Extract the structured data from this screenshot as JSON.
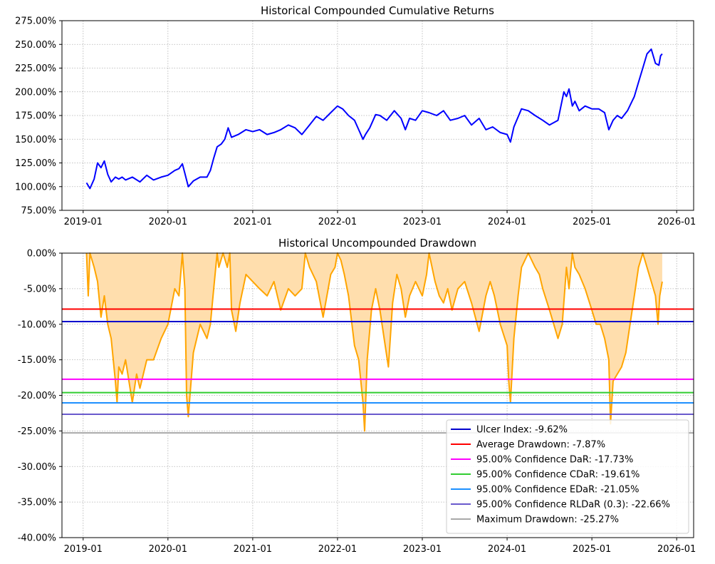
{
  "chart_data": [
    {
      "type": "line",
      "title": "Historical Compounded Cumulative Returns",
      "xlabel": "",
      "ylabel": "",
      "grid": true,
      "ylim": [
        0.75,
        2.75
      ],
      "xlim": [
        2018.75,
        2026.2
      ],
      "x_ticks": [
        2019,
        2020,
        2021,
        2022,
        2023,
        2024,
        2025,
        2026
      ],
      "x_tick_labels": [
        "2019-01",
        "2020-01",
        "2021-01",
        "2022-01",
        "2023-01",
        "2024-01",
        "2025-01",
        "2026-01"
      ],
      "y_ticks": [
        0.75,
        1.0,
        1.25,
        1.5,
        1.75,
        2.0,
        2.25,
        2.5,
        2.75
      ],
      "y_tick_labels": [
        "75.00%",
        "100.00%",
        "125.00%",
        "150.00%",
        "175.00%",
        "200.00%",
        "225.00%",
        "250.00%",
        "275.00%"
      ],
      "series": [
        {
          "name": "Cumulative Returns",
          "color": "#0000ff",
          "x": [
            2019.04,
            2019.08,
            2019.13,
            2019.17,
            2019.21,
            2019.25,
            2019.29,
            2019.33,
            2019.38,
            2019.42,
            2019.46,
            2019.5,
            2019.58,
            2019.67,
            2019.75,
            2019.83,
            2019.92,
            2020.0,
            2020.08,
            2020.13,
            2020.17,
            2020.2,
            2020.24,
            2020.3,
            2020.38,
            2020.46,
            2020.5,
            2020.54,
            2020.58,
            2020.63,
            2020.67,
            2020.71,
            2020.75,
            2020.83,
            2020.92,
            2021.0,
            2021.08,
            2021.17,
            2021.25,
            2021.33,
            2021.42,
            2021.5,
            2021.58,
            2021.67,
            2021.75,
            2021.83,
            2021.92,
            2022.0,
            2022.06,
            2022.13,
            2022.2,
            2022.25,
            2022.3,
            2022.33,
            2022.38,
            2022.45,
            2022.5,
            2022.58,
            2022.67,
            2022.75,
            2022.8,
            2022.85,
            2022.92,
            2023.0,
            2023.08,
            2023.17,
            2023.25,
            2023.33,
            2023.42,
            2023.5,
            2023.58,
            2023.67,
            2023.75,
            2023.83,
            2023.92,
            2024.0,
            2024.04,
            2024.08,
            2024.17,
            2024.25,
            2024.33,
            2024.42,
            2024.5,
            2024.6,
            2024.67,
            2024.7,
            2024.73,
            2024.77,
            2024.8,
            2024.85,
            2024.92,
            2025.0,
            2025.08,
            2025.15,
            2025.2,
            2025.25,
            2025.27,
            2025.3,
            2025.35,
            2025.42,
            2025.5,
            2025.55,
            2025.6,
            2025.65,
            2025.7,
            2025.75,
            2025.79,
            2025.81,
            2025.83
          ],
          "y": [
            1.04,
            0.98,
            1.08,
            1.25,
            1.2,
            1.27,
            1.13,
            1.05,
            1.1,
            1.08,
            1.1,
            1.07,
            1.1,
            1.05,
            1.12,
            1.07,
            1.1,
            1.12,
            1.17,
            1.19,
            1.24,
            1.14,
            1.0,
            1.06,
            1.1,
            1.1,
            1.17,
            1.3,
            1.42,
            1.45,
            1.5,
            1.62,
            1.52,
            1.55,
            1.6,
            1.58,
            1.6,
            1.55,
            1.57,
            1.6,
            1.65,
            1.62,
            1.55,
            1.65,
            1.74,
            1.7,
            1.78,
            1.85,
            1.82,
            1.75,
            1.7,
            1.6,
            1.5,
            1.55,
            1.62,
            1.76,
            1.75,
            1.7,
            1.8,
            1.72,
            1.6,
            1.72,
            1.7,
            1.8,
            1.78,
            1.75,
            1.8,
            1.7,
            1.72,
            1.75,
            1.65,
            1.72,
            1.6,
            1.63,
            1.57,
            1.55,
            1.47,
            1.63,
            1.82,
            1.8,
            1.75,
            1.7,
            1.65,
            1.7,
            2.0,
            1.95,
            2.03,
            1.85,
            1.9,
            1.8,
            1.85,
            1.82,
            1.82,
            1.78,
            1.6,
            1.7,
            1.72,
            1.75,
            1.72,
            1.8,
            1.95,
            2.1,
            2.25,
            2.4,
            2.45,
            2.3,
            2.28,
            2.38,
            2.4
          ]
        }
      ]
    },
    {
      "type": "area",
      "title": "Historical Uncompounded Drawdown",
      "xlabel": "",
      "ylabel": "",
      "grid": true,
      "ylim": [
        -0.4,
        0.0
      ],
      "xlim": [
        2018.75,
        2026.2
      ],
      "x_ticks": [
        2019,
        2020,
        2021,
        2022,
        2023,
        2024,
        2025,
        2026
      ],
      "x_tick_labels": [
        "2019-01",
        "2020-01",
        "2021-01",
        "2022-01",
        "2023-01",
        "2024-01",
        "2025-01",
        "2026-01"
      ],
      "y_ticks": [
        0.0,
        -0.05,
        -0.1,
        -0.15,
        -0.2,
        -0.25,
        -0.3,
        -0.35,
        -0.4
      ],
      "y_tick_labels": [
        "0.00%",
        "-5.00%",
        "-10.00%",
        "-15.00%",
        "-20.00%",
        "-25.00%",
        "-30.00%",
        "-35.00%",
        "-40.00%"
      ],
      "series": [
        {
          "name": "Drawdown",
          "color": "#ffa500",
          "fill_color": "#ffdead",
          "x": [
            2019.04,
            2019.06,
            2019.08,
            2019.13,
            2019.17,
            2019.21,
            2019.25,
            2019.29,
            2019.33,
            2019.38,
            2019.4,
            2019.42,
            2019.46,
            2019.5,
            2019.58,
            2019.63,
            2019.67,
            2019.75,
            2019.83,
            2019.92,
            2020.0,
            2020.08,
            2020.13,
            2020.17,
            2020.2,
            2020.22,
            2020.24,
            2020.3,
            2020.38,
            2020.46,
            2020.5,
            2020.54,
            2020.58,
            2020.6,
            2020.65,
            2020.7,
            2020.73,
            2020.75,
            2020.8,
            2020.85,
            2020.92,
            2021.0,
            2021.08,
            2021.17,
            2021.25,
            2021.33,
            2021.42,
            2021.5,
            2021.58,
            2021.62,
            2021.67,
            2021.75,
            2021.83,
            2021.92,
            2021.97,
            2022.0,
            2022.04,
            2022.08,
            2022.13,
            2022.17,
            2022.2,
            2022.25,
            2022.3,
            2022.32,
            2022.35,
            2022.4,
            2022.45,
            2022.5,
            2022.55,
            2022.6,
            2022.65,
            2022.7,
            2022.75,
            2022.8,
            2022.85,
            2022.92,
            2023.0,
            2023.05,
            2023.08,
            2023.15,
            2023.2,
            2023.25,
            2023.3,
            2023.35,
            2023.42,
            2023.5,
            2023.58,
            2023.67,
            2023.75,
            2023.8,
            2023.85,
            2023.92,
            2024.0,
            2024.02,
            2024.04,
            2024.08,
            2024.13,
            2024.17,
            2024.25,
            2024.33,
            2024.38,
            2024.42,
            2024.5,
            2024.55,
            2024.6,
            2024.65,
            2024.7,
            2024.73,
            2024.77,
            2024.8,
            2024.85,
            2024.92,
            2025.0,
            2025.05,
            2025.1,
            2025.15,
            2025.2,
            2025.22,
            2025.25,
            2025.3,
            2025.35,
            2025.4,
            2025.45,
            2025.5,
            2025.55,
            2025.6,
            2025.65,
            2025.7,
            2025.75,
            2025.78,
            2025.8,
            2025.83
          ],
          "y": [
            0.0,
            -0.06,
            0.0,
            -0.02,
            -0.04,
            -0.09,
            -0.06,
            -0.1,
            -0.12,
            -0.18,
            -0.21,
            -0.16,
            -0.17,
            -0.15,
            -0.21,
            -0.17,
            -0.19,
            -0.15,
            -0.15,
            -0.12,
            -0.1,
            -0.05,
            -0.06,
            0.0,
            -0.05,
            -0.2,
            -0.23,
            -0.14,
            -0.1,
            -0.12,
            -0.1,
            -0.05,
            0.0,
            -0.02,
            0.0,
            -0.02,
            0.0,
            -0.08,
            -0.11,
            -0.07,
            -0.03,
            -0.04,
            -0.05,
            -0.06,
            -0.04,
            -0.08,
            -0.05,
            -0.06,
            -0.05,
            0.0,
            -0.02,
            -0.04,
            -0.09,
            -0.03,
            -0.02,
            0.0,
            -0.01,
            -0.03,
            -0.06,
            -0.1,
            -0.13,
            -0.15,
            -0.21,
            -0.25,
            -0.15,
            -0.08,
            -0.05,
            -0.08,
            -0.12,
            -0.16,
            -0.07,
            -0.03,
            -0.05,
            -0.09,
            -0.06,
            -0.04,
            -0.06,
            -0.03,
            0.0,
            -0.04,
            -0.06,
            -0.07,
            -0.05,
            -0.08,
            -0.05,
            -0.04,
            -0.07,
            -0.11,
            -0.06,
            -0.04,
            -0.06,
            -0.1,
            -0.13,
            -0.18,
            -0.21,
            -0.12,
            -0.06,
            -0.02,
            0.0,
            -0.02,
            -0.03,
            -0.05,
            -0.08,
            -0.1,
            -0.12,
            -0.1,
            -0.02,
            -0.05,
            0.0,
            -0.02,
            -0.03,
            -0.05,
            -0.08,
            -0.1,
            -0.1,
            -0.12,
            -0.15,
            -0.24,
            -0.18,
            -0.17,
            -0.16,
            -0.14,
            -0.1,
            -0.06,
            -0.02,
            0.0,
            -0.02,
            -0.04,
            -0.06,
            -0.1,
            -0.06,
            -0.04
          ]
        }
      ],
      "reference_lines": [
        {
          "label": "Ulcer Index: -9.62%",
          "value": -0.0962,
          "color": "#0000cd"
        },
        {
          "label": "Average Drawdown: -7.87%",
          "value": -0.0787,
          "color": "#ff0000"
        },
        {
          "label": "95.00% Confidence DaR: -17.73%",
          "value": -0.1773,
          "color": "#ff00ff"
        },
        {
          "label": "95.00% Confidence CDaR: -19.61%",
          "value": -0.1961,
          "color": "#32cd32"
        },
        {
          "label": "95.00% Confidence EDaR: -21.05%",
          "value": -0.2105,
          "color": "#1e90ff"
        },
        {
          "label": "95.00% Confidence RLDaR (0.3): -22.66%",
          "value": -0.2266,
          "color": "#6a5acd"
        },
        {
          "label": "Maximum Drawdown: -25.27%",
          "value": -0.2527,
          "color": "#a9a9a9"
        }
      ],
      "legend_position": "bottom-right"
    }
  ]
}
